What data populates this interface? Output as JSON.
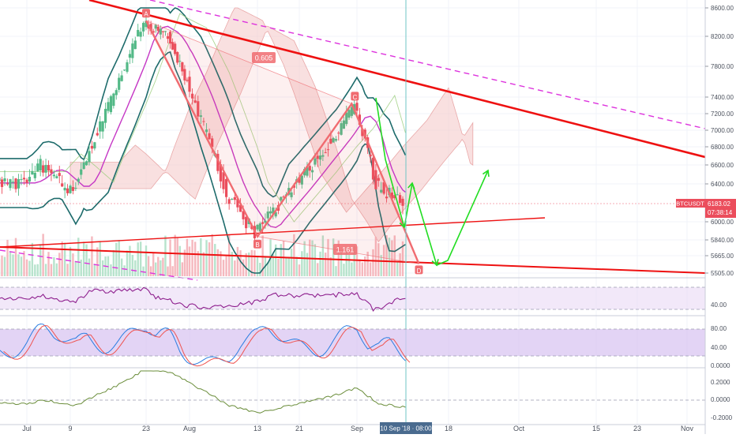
{
  "chart_data": {
    "type": "candlestick",
    "symbol": "BTCUSDT",
    "price_badge": "6183.02",
    "time_badge": "07:38:14",
    "crosshair_label": "10 Sep '18 · 08:00",
    "x_ticks": [
      "Jul",
      "9",
      "23",
      "Aug",
      "13",
      "21",
      "Sep",
      "18",
      "Oct",
      "15",
      "23",
      "Nov"
    ],
    "y_ticks": [
      "8600.00",
      "8200.00",
      "7800.00",
      "7400.00",
      "7200.00",
      "7000.00",
      "6800.00",
      "6600.00",
      "6400.00",
      "6000.00",
      "5840.00",
      "5665.00",
      "5505.00"
    ],
    "pattern_labels": [
      "A",
      "B",
      "C",
      "D"
    ],
    "ratios": [
      "0.605",
      "1.161"
    ],
    "rsi_ticks": [
      "40.00"
    ],
    "stoch_ticks": [
      "80.00",
      "40.00",
      "0.0000"
    ],
    "osc_ticks": [
      "0.2000",
      "0.0000",
      "-0.2000"
    ],
    "price_series": {
      "keypoints": [
        [
          "Jul",
          6410
        ],
        [
          "Jul 4",
          6600
        ],
        [
          "Jul 10",
          6300
        ],
        [
          "Jul 18",
          7500
        ],
        [
          "Jul 23",
          8400
        ],
        [
          "Jul 28",
          8200
        ],
        [
          "Aug 1",
          7600
        ],
        [
          "Aug 8",
          6300
        ],
        [
          "Aug 13",
          5880
        ],
        [
          "Aug 21",
          6400
        ],
        [
          "Aug 28",
          6900
        ],
        [
          "Sep",
          7300
        ],
        [
          "Sep 5",
          6400
        ],
        [
          "Sep 10",
          6183
        ]
      ]
    },
    "colors": {
      "up": "#53b987",
      "down": "#eb4d5c",
      "trendline": "#ee1111",
      "pattern": "#f06b70",
      "projection": "#22dd22",
      "dashed_trend": "#dd33dd",
      "bollinger": "#1d6b6b",
      "ma": "#c536c5",
      "rsi": "#8e1f8e",
      "panel_fill": "#e9d9f5"
    }
  }
}
